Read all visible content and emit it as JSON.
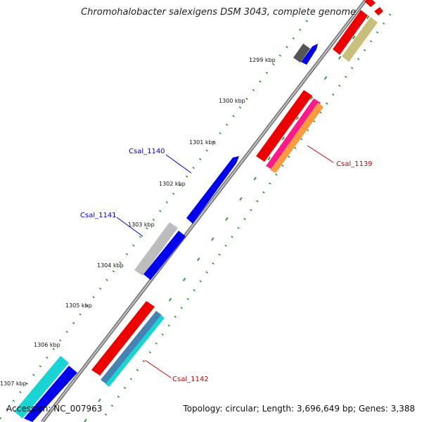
{
  "title": "Chromohalobacter salexigens DSM 3043, complete genome",
  "accession": "Accession: NC_007963",
  "topology": "Topology: circular; Length: 3,696,649 bp; Genes: 3,388",
  "scale_ticks": [
    {
      "label": "1299 kbp"
    },
    {
      "label": "1300 kbp"
    },
    {
      "label": "1301 kbp"
    },
    {
      "label": "1302 kbp"
    },
    {
      "label": "1303 kbp"
    },
    {
      "label": "1304 kbp"
    },
    {
      "label": "1305 kbp"
    },
    {
      "label": "1306 kbp"
    },
    {
      "label": "1307 kbp"
    }
  ],
  "gene_labels": [
    {
      "text": "Csal_1140",
      "color": "#0000cc"
    },
    {
      "text": "Csal_1141",
      "color": "#0000cc"
    },
    {
      "text": "Csal_1139",
      "color": "#cc0000"
    },
    {
      "text": "Csal_1142",
      "color": "#cc0000"
    }
  ],
  "colors": {
    "backbone": "#8c8c8c",
    "scale_dots": "#1a8c1a",
    "forward_gene": "#0000ee",
    "reverse_gene": "#ee0000",
    "gray_gene": "#bdbdbd",
    "dark_gray_gene": "#555555",
    "cyan_gene": "#18d4d4",
    "steel_gene": "#4682b4",
    "khaki_gene": "#c8c07a",
    "orange_gene": "#ff9a40",
    "pink_gene": "#ff1a8c"
  }
}
